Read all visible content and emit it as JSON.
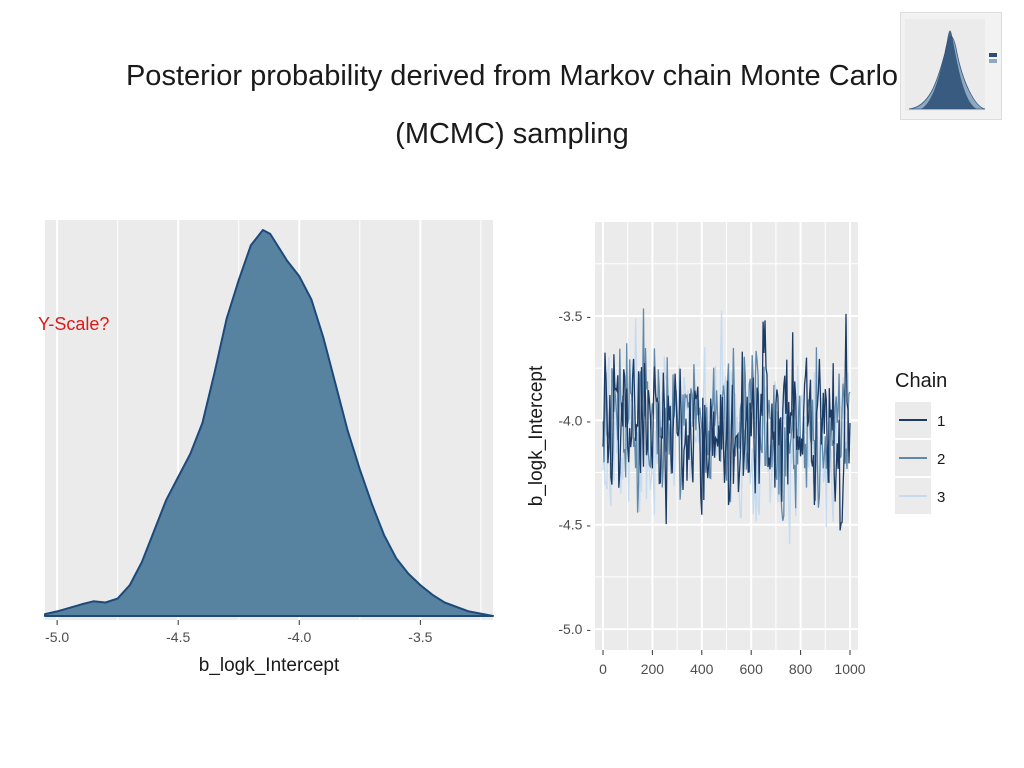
{
  "slide": {
    "title_line1": "Posterior probability derived from Markov chain Monte Carlo",
    "title_line2": "(MCMC) sampling",
    "annotation": "Y-Scale?"
  },
  "colors": {
    "density_fill": "#5782a0",
    "density_line": "#1d4a7a",
    "panel_bg": "#ebebeb",
    "grid": "#ffffff",
    "chain1": "#1b3a64",
    "chain2": "#5f88aa",
    "chain3": "#c6dbef",
    "annotation": "#e01818"
  },
  "chart_data": [
    {
      "type": "area",
      "xlabel": "b_logk_Intercept",
      "ylabel": "",
      "xlim": [
        -5.05,
        -3.2
      ],
      "xticks": [
        -5.0,
        -4.5,
        -4.0,
        -3.5
      ],
      "xtick_labels": [
        "-5.0",
        "-4.5",
        "-4.0",
        "-3.5"
      ],
      "grid": true,
      "x": [
        -5.05,
        -5.0,
        -4.9,
        -4.85,
        -4.8,
        -4.75,
        -4.7,
        -4.65,
        -4.6,
        -4.55,
        -4.5,
        -4.45,
        -4.4,
        -4.35,
        -4.3,
        -4.25,
        -4.2,
        -4.15,
        -4.12,
        -4.1,
        -4.05,
        -4.0,
        -3.95,
        -3.9,
        -3.85,
        -3.8,
        -3.75,
        -3.7,
        -3.65,
        -3.6,
        -3.55,
        -3.5,
        -3.45,
        -3.4,
        -3.3,
        -3.2
      ],
      "density": [
        0.005,
        0.012,
        0.03,
        0.038,
        0.035,
        0.045,
        0.08,
        0.14,
        0.22,
        0.3,
        0.36,
        0.42,
        0.5,
        0.63,
        0.77,
        0.87,
        0.96,
        1.0,
        0.99,
        0.97,
        0.92,
        0.88,
        0.82,
        0.72,
        0.6,
        0.48,
        0.38,
        0.29,
        0.21,
        0.15,
        0.11,
        0.08,
        0.055,
        0.035,
        0.012,
        0.0
      ]
    },
    {
      "type": "line",
      "xlabel": "",
      "ylabel": "b_logk_Intercept",
      "xlim": [
        0,
        1000
      ],
      "ylim": [
        -5.1,
        -3.05
      ],
      "xticks": [
        0,
        200,
        400,
        600,
        800,
        1000
      ],
      "xtick_labels": [
        "0",
        "200",
        "400",
        "600",
        "800",
        "1000"
      ],
      "yticks": [
        -3.5,
        -4.0,
        -4.5,
        -5.0
      ],
      "ytick_labels": [
        "-3.5 -",
        "-4.0 -",
        "-4.5 -",
        "-5.0 -"
      ],
      "grid": true,
      "legend_title": "Chain",
      "legend_position": "right",
      "iterations": 1000,
      "series": [
        {
          "name": "1",
          "mean": -4.05,
          "sd": 0.28
        },
        {
          "name": "2",
          "mean": -4.05,
          "sd": 0.28
        },
        {
          "name": "3",
          "mean": -4.05,
          "sd": 0.28
        }
      ]
    }
  ],
  "thumbnail": {
    "description_icon": "density-plot-thumbnail"
  }
}
